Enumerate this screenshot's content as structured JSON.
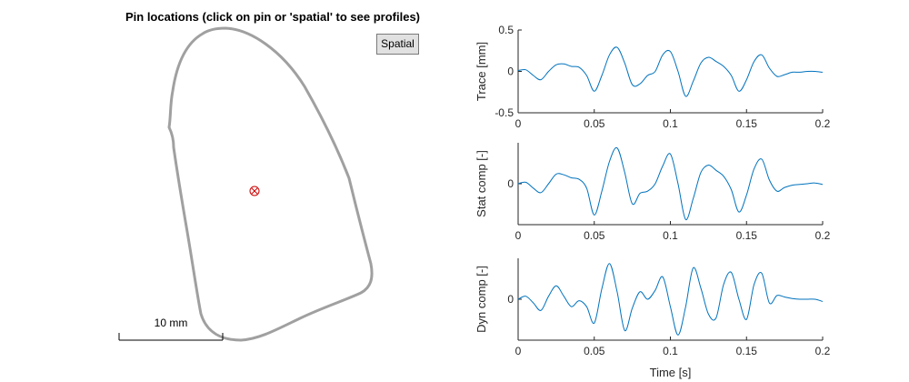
{
  "title": "Pin locations (click on pin or 'spatial' to see profiles)",
  "spatial_button": "Spatial",
  "scale_label": "10 mm",
  "colors": {
    "outline": "#a0a0a0",
    "pin": "#cc0000",
    "trace": "#0072bd",
    "axis": "#262626"
  },
  "chart_data": [
    {
      "type": "line",
      "ylabel": "Trace [mm]",
      "xlim": [
        0,
        0.2
      ],
      "ylim": [
        -0.5,
        0.5
      ],
      "x_ticks": [
        0,
        0.05,
        0.1,
        0.15,
        0.2
      ],
      "x_tick_labels": [
        "0",
        "0.05",
        "0.1",
        "0.15",
        "0.2"
      ],
      "y_ticks": [
        -0.5,
        0,
        0.5
      ],
      "y_tick_labels": [
        "-0.5",
        "0",
        "0.5"
      ],
      "x": [
        0,
        0.005,
        0.01,
        0.015,
        0.02,
        0.025,
        0.03,
        0.035,
        0.04,
        0.045,
        0.05,
        0.055,
        0.06,
        0.065,
        0.07,
        0.075,
        0.08,
        0.085,
        0.09,
        0.095,
        0.1,
        0.105,
        0.11,
        0.115,
        0.12,
        0.125,
        0.13,
        0.135,
        0.14,
        0.145,
        0.15,
        0.155,
        0.16,
        0.165,
        0.17,
        0.175,
        0.18,
        0.185,
        0.19,
        0.195,
        0.2
      ],
      "y": [
        0.01,
        0.02,
        -0.05,
        -0.1,
        0,
        0.08,
        0.09,
        0.06,
        0.05,
        -0.05,
        -0.24,
        -0.05,
        0.2,
        0.29,
        0.1,
        -0.16,
        -0.15,
        -0.05,
        0,
        0.2,
        0.24,
        0,
        -0.3,
        -0.12,
        0.1,
        0.17,
        0.12,
        0.06,
        -0.05,
        -0.24,
        -0.1,
        0.12,
        0.2,
        0.04,
        -0.06,
        -0.04,
        -0.01,
        -0.01,
        0,
        0,
        -0.01
      ],
      "series_name": "",
      "xlabel": ""
    },
    {
      "type": "line",
      "ylabel": "Stat comp [-]",
      "xlim": [
        0,
        0.2
      ],
      "ylim": [
        -0.55,
        0.55
      ],
      "x_ticks": [
        0,
        0.05,
        0.1,
        0.15,
        0.2
      ],
      "x_tick_labels": [
        "0",
        "0.05",
        "0.1",
        "0.15",
        "0.2"
      ],
      "y_ticks": [
        0
      ],
      "y_tick_labels": [
        "0"
      ],
      "x": [
        0,
        0.005,
        0.01,
        0.015,
        0.02,
        0.025,
        0.03,
        0.035,
        0.04,
        0.045,
        0.05,
        0.055,
        0.06,
        0.065,
        0.07,
        0.075,
        0.08,
        0.085,
        0.09,
        0.095,
        0.1,
        0.105,
        0.11,
        0.115,
        0.12,
        0.125,
        0.13,
        0.135,
        0.14,
        0.145,
        0.15,
        0.155,
        0.16,
        0.165,
        0.17,
        0.175,
        0.18,
        0.185,
        0.19,
        0.195,
        0.2
      ],
      "y": [
        0,
        0.02,
        -0.06,
        -0.12,
        0,
        0.13,
        0.12,
        0.08,
        0.06,
        -0.06,
        -0.42,
        -0.1,
        0.3,
        0.48,
        0.15,
        -0.27,
        -0.13,
        -0.1,
        0,
        0.24,
        0.4,
        0,
        -0.48,
        -0.2,
        0.15,
        0.25,
        0.18,
        0.1,
        -0.08,
        -0.38,
        -0.15,
        0.2,
        0.33,
        0.05,
        -0.1,
        -0.05,
        -0.02,
        -0.01,
        0,
        0.01,
        -0.01
      ],
      "series_name": "",
      "xlabel": ""
    },
    {
      "type": "line",
      "ylabel": "Dyn comp [-]",
      "xlabel": "Time [s]",
      "xlim": [
        0,
        0.2
      ],
      "ylim": [
        -0.55,
        0.55
      ],
      "x_ticks": [
        0,
        0.05,
        0.1,
        0.15,
        0.2
      ],
      "x_tick_labels": [
        "0",
        "0.05",
        "0.1",
        "0.15",
        "0.2"
      ],
      "y_ticks": [
        0
      ],
      "y_tick_labels": [
        "0"
      ],
      "x": [
        0,
        0.005,
        0.01,
        0.015,
        0.02,
        0.025,
        0.03,
        0.035,
        0.04,
        0.045,
        0.05,
        0.055,
        0.06,
        0.065,
        0.07,
        0.075,
        0.08,
        0.085,
        0.09,
        0.095,
        0.1,
        0.105,
        0.11,
        0.115,
        0.12,
        0.125,
        0.13,
        0.135,
        0.14,
        0.145,
        0.15,
        0.155,
        0.16,
        0.165,
        0.17,
        0.175,
        0.18,
        0.185,
        0.19,
        0.195,
        0.2
      ],
      "y": [
        0,
        0.04,
        -0.05,
        -0.15,
        0.04,
        0.18,
        0.04,
        -0.1,
        -0.02,
        -0.1,
        -0.32,
        0.14,
        0.48,
        0.1,
        -0.42,
        -0.12,
        0.1,
        0,
        0.12,
        0.3,
        -0.1,
        -0.48,
        -0.1,
        0.42,
        0.15,
        -0.2,
        -0.25,
        0.2,
        0.36,
        0,
        -0.27,
        0.2,
        0.35,
        -0.05,
        0.05,
        0.03,
        0.01,
        0,
        0,
        0,
        -0.03
      ],
      "series_name": ""
    }
  ]
}
